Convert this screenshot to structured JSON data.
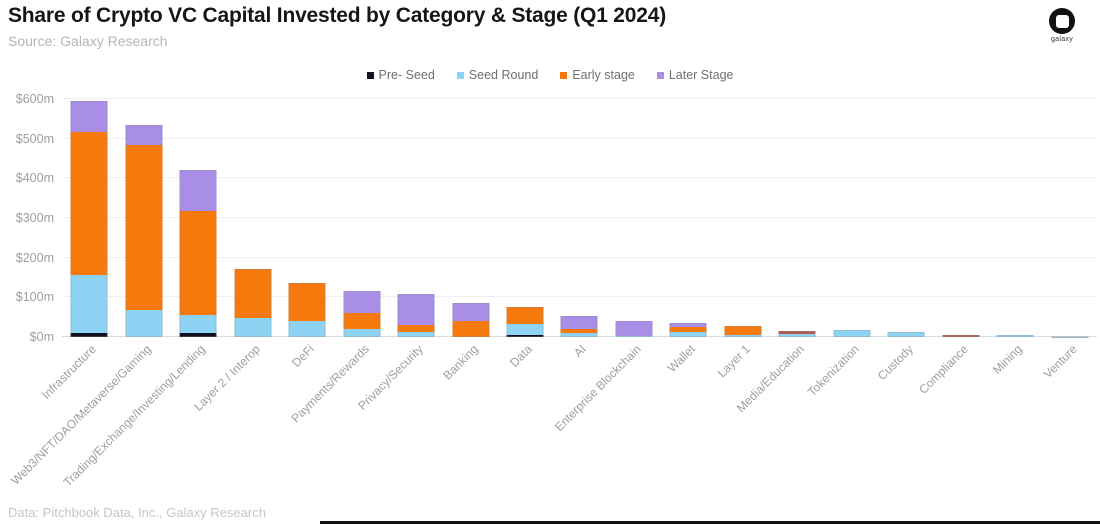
{
  "header": {
    "title": "Share of Crypto VC Capital Invested by Category & Stage (Q1 2024)",
    "source": "Source: Galaxy Research",
    "logo_text": "galaxy"
  },
  "footer": {
    "credit": "Data: Pitchbook Data, Inc., Galaxy Research"
  },
  "chart_data": {
    "type": "bar",
    "stacked": true,
    "title": "Share of Crypto VC Capital Invested by Category & Stage (Q1 2024)",
    "xlabel": "",
    "ylabel": "",
    "unit": "$m",
    "ylim": [
      0,
      600
    ],
    "ytick_step": 100,
    "ytick_labels": [
      "$0m",
      "$100m",
      "$200m",
      "$300m",
      "$400m",
      "$500m",
      "$600m"
    ],
    "grid": true,
    "legend_position": "top",
    "categories": [
      "Infrastructure",
      "Web3/NFT/DAO/Metaverse/Gaming",
      "Trading/Exchange/Investing/Lending",
      "Layer 2 / Interop",
      "DeFi",
      "Payments/Rewards",
      "Privacy/Security",
      "Banking",
      "Data",
      "AI",
      "Enterprise Blockchain",
      "Wallet",
      "Layer 1",
      "Media/Education",
      "Tokenization",
      "Custody",
      "Compliance",
      "Mining",
      "Venture"
    ],
    "series": [
      {
        "name": "Pre- Seed",
        "color": "#101020",
        "values": [
          10,
          0,
          11,
          0,
          0,
          0,
          0,
          0,
          4,
          0,
          0,
          0,
          0,
          0,
          0,
          0,
          0,
          0,
          0
        ]
      },
      {
        "name": "Seed Round",
        "color": "#8fd3f4",
        "values": [
          146,
          67,
          44,
          47,
          40,
          20,
          13,
          0,
          30,
          10,
          3,
          13,
          6,
          8,
          18,
          13,
          0,
          5,
          1
        ]
      },
      {
        "name": "Early stage",
        "color": "#f5790d",
        "values": [
          360,
          417,
          262,
          125,
          96,
          41,
          17,
          40,
          41,
          11,
          0,
          11,
          23,
          8,
          0,
          0,
          6,
          0,
          0
        ]
      },
      {
        "name": "Later Stage",
        "color": "#a98ee8",
        "values": [
          79,
          51,
          103,
          0,
          0,
          54,
          79,
          45,
          2,
          33,
          38,
          11,
          0,
          0,
          0,
          0,
          0,
          0,
          0
        ]
      }
    ],
    "segment_color_overrides": [
      {
        "category": "Media/Education",
        "series": "Early stage",
        "color": "#b3584f"
      },
      {
        "category": "Compliance",
        "series": "Early stage",
        "color": "#b3584f"
      }
    ]
  }
}
